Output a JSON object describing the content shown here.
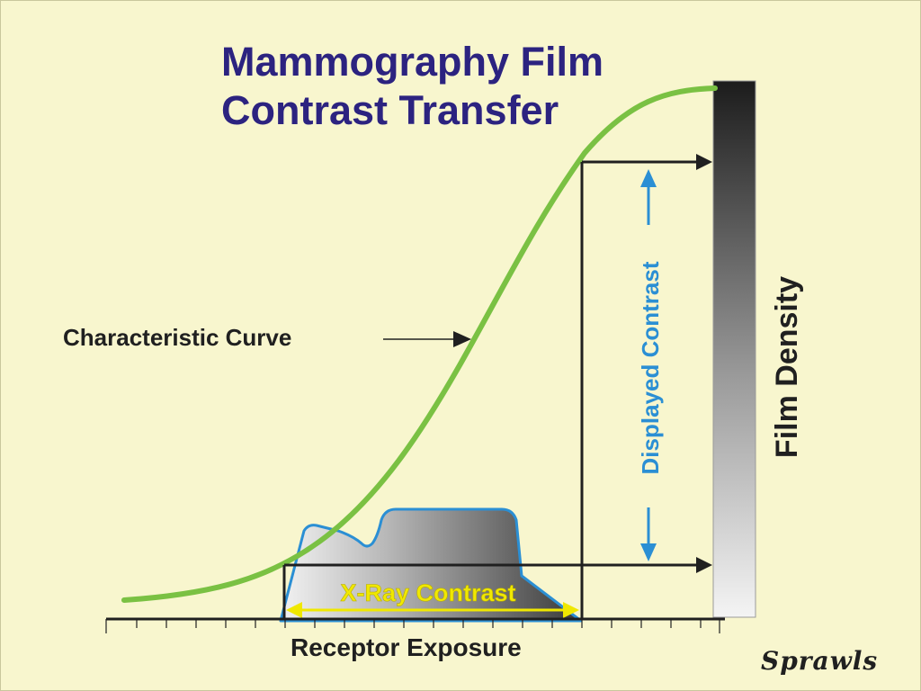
{
  "title": {
    "line1": "Mammography Film",
    "line2": "Contrast Transfer"
  },
  "labels": {
    "characteristic_curve": "Characteristic Curve",
    "xray_contrast": "X-Ray Contrast",
    "displayed_contrast": "Displayed Contrast",
    "film_density": "Film Density",
    "receptor_exposure": "Receptor Exposure",
    "credit": "Sprawls"
  },
  "colors": {
    "background": "#f8f6ce",
    "title": "#2c2380",
    "curve": "#7ac143",
    "displayed_contrast": "#2b8fd4",
    "xray_contrast": "#f0e800",
    "text": "#202020"
  }
}
